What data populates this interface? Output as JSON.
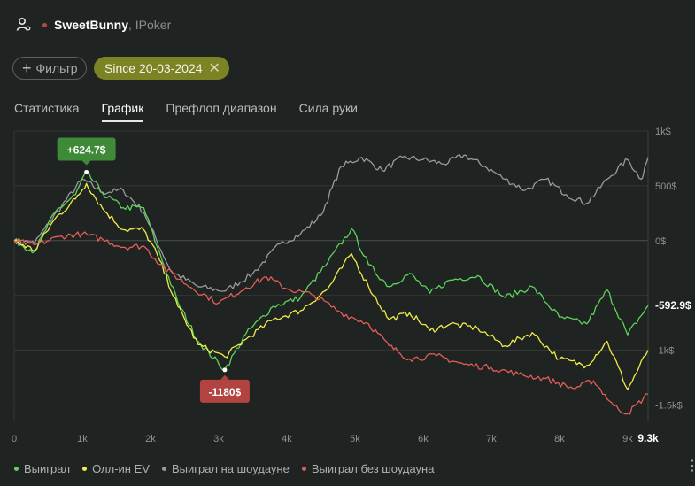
{
  "header": {
    "player": "SweetBunny",
    "room": ", IPoker",
    "icon": "user-settings-icon"
  },
  "filters": {
    "add_label": "Фильтр",
    "date_label": "Since 20-03-2024"
  },
  "tabs": [
    {
      "label": "Статистика",
      "active": false
    },
    {
      "label": "График",
      "active": true
    },
    {
      "label": "Префлоп диапазон",
      "active": false
    },
    {
      "label": "Сила руки",
      "active": false
    }
  ],
  "chart_data": {
    "type": "line",
    "x_ticks": [
      "0",
      "1k",
      "2k",
      "3k",
      "4k",
      "5k",
      "6k",
      "7k",
      "8k",
      "9k"
    ],
    "x_end_label": "9.3k",
    "y_ticks": [
      "1k$",
      "500$",
      "0$",
      "-1k$",
      "-1.5k$"
    ],
    "xlim": [
      0,
      9300
    ],
    "ylim": [
      -1650,
      1000
    ],
    "max_label": "+624.7$",
    "min_label": "-1180$",
    "end_label": "-592.9$",
    "max_point": {
      "x": 1060,
      "y": 624.7
    },
    "min_point": {
      "x": 3090,
      "y": -1180
    },
    "series": [
      {
        "name": "Выиграл на шоудауне",
        "color": "#9a9a9a",
        "points": [
          [
            0,
            0
          ],
          [
            300,
            -20
          ],
          [
            700,
            320
          ],
          [
            1000,
            560
          ],
          [
            1300,
            440
          ],
          [
            1600,
            460
          ],
          [
            1900,
            260
          ],
          [
            2300,
            -280
          ],
          [
            2700,
            -420
          ],
          [
            3100,
            -460
          ],
          [
            3500,
            -300
          ],
          [
            3900,
            -30
          ],
          [
            4200,
            60
          ],
          [
            4500,
            230
          ],
          [
            4800,
            680
          ],
          [
            5100,
            760
          ],
          [
            5400,
            640
          ],
          [
            5700,
            760
          ],
          [
            6000,
            740
          ],
          [
            6300,
            700
          ],
          [
            6600,
            780
          ],
          [
            6900,
            680
          ],
          [
            7200,
            560
          ],
          [
            7500,
            460
          ],
          [
            7800,
            560
          ],
          [
            8100,
            420
          ],
          [
            8400,
            340
          ],
          [
            8700,
            560
          ],
          [
            9000,
            740
          ],
          [
            9200,
            560
          ],
          [
            9300,
            760
          ]
        ]
      },
      {
        "name": "Выиграл",
        "color": "#5fd35b",
        "points": [
          [
            0,
            0
          ],
          [
            300,
            -100
          ],
          [
            600,
            260
          ],
          [
            900,
            420
          ],
          [
            1060,
            624.7
          ],
          [
            1300,
            430
          ],
          [
            1600,
            300
          ],
          [
            1900,
            300
          ],
          [
            2100,
            -60
          ],
          [
            2400,
            -560
          ],
          [
            2700,
            -920
          ],
          [
            3090,
            -1180
          ],
          [
            3400,
            -850
          ],
          [
            3800,
            -600
          ],
          [
            4200,
            -520
          ],
          [
            4600,
            -200
          ],
          [
            4950,
            110
          ],
          [
            5200,
            -220
          ],
          [
            5500,
            -420
          ],
          [
            5800,
            -300
          ],
          [
            6100,
            -480
          ],
          [
            6400,
            -360
          ],
          [
            6800,
            -320
          ],
          [
            7200,
            -520
          ],
          [
            7600,
            -420
          ],
          [
            8000,
            -700
          ],
          [
            8400,
            -760
          ],
          [
            8700,
            -450
          ],
          [
            9000,
            -860
          ],
          [
            9300,
            -592.9
          ]
        ]
      },
      {
        "name": "Олл-ин EV",
        "color": "#f2ec4a",
        "points": [
          [
            0,
            0
          ],
          [
            300,
            -90
          ],
          [
            600,
            200
          ],
          [
            900,
            380
          ],
          [
            1060,
            520
          ],
          [
            1300,
            290
          ],
          [
            1600,
            100
          ],
          [
            1900,
            100
          ],
          [
            2100,
            -130
          ],
          [
            2400,
            -600
          ],
          [
            2700,
            -950
          ],
          [
            3090,
            -1060
          ],
          [
            3400,
            -900
          ],
          [
            3800,
            -720
          ],
          [
            4200,
            -640
          ],
          [
            4600,
            -440
          ],
          [
            4950,
            -120
          ],
          [
            5200,
            -420
          ],
          [
            5500,
            -720
          ],
          [
            5800,
            -660
          ],
          [
            6100,
            -820
          ],
          [
            6400,
            -760
          ],
          [
            6800,
            -800
          ],
          [
            7200,
            -960
          ],
          [
            7600,
            -840
          ],
          [
            8000,
            -1080
          ],
          [
            8400,
            -1140
          ],
          [
            8700,
            -920
          ],
          [
            9000,
            -1360
          ],
          [
            9300,
            -1000
          ]
        ]
      },
      {
        "name": "Выиграл без шоудауна",
        "color": "#e35d59",
        "points": [
          [
            0,
            0
          ],
          [
            300,
            -40
          ],
          [
            700,
            40
          ],
          [
            1000,
            60
          ],
          [
            1300,
            10
          ],
          [
            1600,
            -60
          ],
          [
            1900,
            -50
          ],
          [
            2200,
            -250
          ],
          [
            2600,
            -430
          ],
          [
            3000,
            -570
          ],
          [
            3400,
            -430
          ],
          [
            3700,
            -330
          ],
          [
            4000,
            -440
          ],
          [
            4400,
            -500
          ],
          [
            4800,
            -660
          ],
          [
            5200,
            -760
          ],
          [
            5500,
            -960
          ],
          [
            5800,
            -1080
          ],
          [
            6200,
            -1050
          ],
          [
            6600,
            -1130
          ],
          [
            7000,
            -1160
          ],
          [
            7400,
            -1220
          ],
          [
            7800,
            -1260
          ],
          [
            8200,
            -1350
          ],
          [
            8500,
            -1280
          ],
          [
            8800,
            -1510
          ],
          [
            9000,
            -1580
          ],
          [
            9300,
            -1400
          ]
        ]
      }
    ]
  },
  "legend": [
    {
      "label": "Выиграл",
      "color": "#5fd35b"
    },
    {
      "label": "Олл-ин EV",
      "color": "#f2ec4a"
    },
    {
      "label": "Выиграл на шоудауне",
      "color": "#9a9a9a"
    },
    {
      "label": "Выиграл без шоудауна",
      "color": "#e35d59"
    }
  ],
  "colors": {
    "background": "#1f2321",
    "accent": "#7b8325",
    "max_badge": "#3e8a39",
    "min_badge": "#b14440"
  }
}
